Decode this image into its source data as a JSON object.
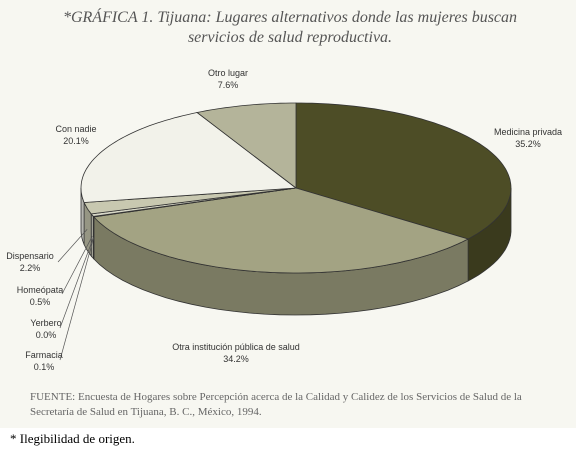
{
  "chart_data": {
    "type": "pie",
    "title": "*GRÁFICA 1. Tijuana: Lugares alternativos donde las mujeres buscan servicios de salud reproductiva.",
    "categories": [
      "Medicina privada",
      "Otra institución pública de salud",
      "Farmacia",
      "Yerbero",
      "Homeópata",
      "Dispensario",
      "Con nadie",
      "Otro lugar"
    ],
    "values": [
      35.2,
      34.2,
      0.1,
      0.0,
      0.5,
      2.2,
      20.1,
      7.6
    ],
    "value_labels": [
      "35.2%",
      "34.2%",
      "0.1%",
      "0.0%",
      "0.5%",
      "2.2%",
      "20.1%",
      "7.6%"
    ],
    "colors": [
      "#4d4d26",
      "#a3a383",
      "#e8e8dc",
      "#f4f4ee",
      "#d8d8c8",
      "#c8c8b0",
      "#f2f2ea",
      "#b4b49a"
    ],
    "source": "FUENTE: Encuesta de Hogares sobre Percepción acerca de la Calidad y Calidez de los Servicios de Salud de la Secretaría de Salud en Tijuana, B. C., México, 1994.",
    "footnote": "* Ilegibilidad de origen."
  }
}
